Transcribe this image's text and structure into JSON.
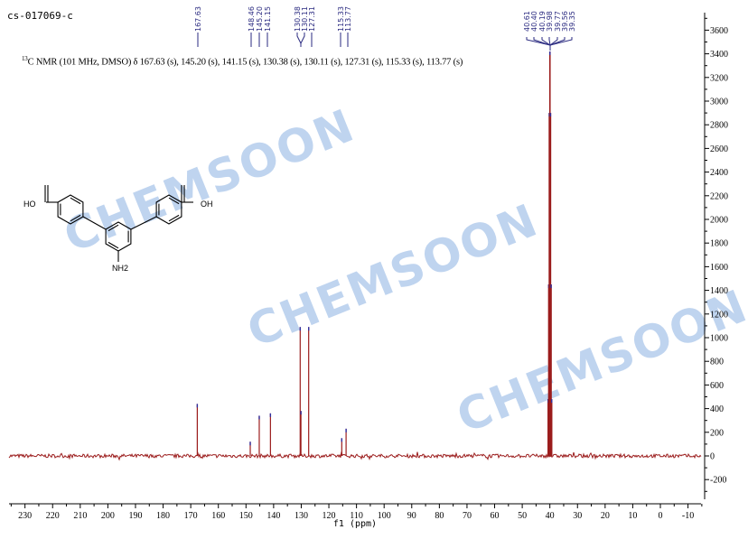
{
  "header": {
    "sample_id": "cs-017069-c",
    "description_sup": "13",
    "description": "C NMR (101 MHz, DMSO) δ 167.63 (s), 145.20 (s), 141.15 (s), 130.38 (s), 130.11 (s), 127.31 (s), 115.33 (s), 113.77 (s)"
  },
  "watermark": "CHEMSOON",
  "structure": {
    "labels": [
      "HO",
      "OH",
      "NH2"
    ]
  },
  "colors": {
    "spectrum": "#9b1c1c",
    "peak_labels": "#2a2a80",
    "watermark": "#aac6ea"
  },
  "chart_data": {
    "type": "line",
    "xlabel": "f1 (ppm)",
    "ylabel": "",
    "xlim": [
      235,
      -15
    ],
    "ylim": [
      -350,
      3750
    ],
    "x_reversed": true,
    "x_ticks": [
      230,
      220,
      210,
      200,
      190,
      180,
      170,
      160,
      150,
      140,
      130,
      120,
      110,
      100,
      90,
      80,
      70,
      60,
      50,
      40,
      30,
      20,
      10,
      0,
      -10
    ],
    "y_ticks": [
      -200,
      0,
      200,
      400,
      600,
      800,
      1000,
      1200,
      1400,
      1600,
      1800,
      2000,
      2200,
      2400,
      2600,
      2800,
      3000,
      3200,
      3400,
      3600
    ],
    "y_axis_position": "right",
    "grid": false,
    "peaks": [
      {
        "ppm": 167.63,
        "intensity": 440
      },
      {
        "ppm": 148.46,
        "intensity": 120
      },
      {
        "ppm": 145.2,
        "intensity": 340
      },
      {
        "ppm": 141.15,
        "intensity": 360
      },
      {
        "ppm": 130.38,
        "intensity": 1090
      },
      {
        "ppm": 130.11,
        "intensity": 380
      },
      {
        "ppm": 127.31,
        "intensity": 1090
      },
      {
        "ppm": 115.33,
        "intensity": 150
      },
      {
        "ppm": 113.77,
        "intensity": 230
      },
      {
        "ppm": 40.61,
        "intensity": 480
      },
      {
        "ppm": 40.4,
        "intensity": 1450
      },
      {
        "ppm": 40.19,
        "intensity": 2900
      },
      {
        "ppm": 39.98,
        "intensity": 3420
      },
      {
        "ppm": 39.77,
        "intensity": 2900
      },
      {
        "ppm": 39.56,
        "intensity": 1450
      },
      {
        "ppm": 39.35,
        "intensity": 480
      }
    ],
    "peak_label_groups": [
      [
        "167.63"
      ],
      [
        "148.46",
        "145.20",
        "141.15"
      ],
      [
        "130.38",
        "130.11",
        "127.31"
      ],
      [
        "115.33",
        "113.77"
      ],
      [
        "40.61",
        "40.40",
        "40.19",
        "39.98",
        "39.77",
        "39.56",
        "39.35"
      ]
    ]
  }
}
